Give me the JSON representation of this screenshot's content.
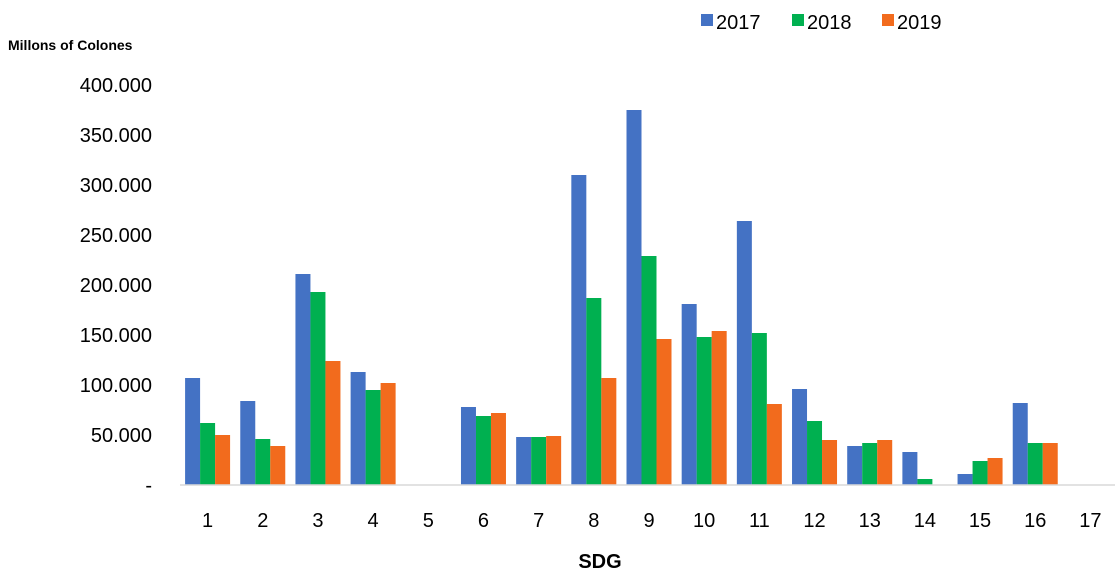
{
  "chart_data": {
    "type": "bar",
    "title": "",
    "xlabel": "SDG",
    "ylabel": "Millons of Colones",
    "categories": [
      "1",
      "2",
      "3",
      "4",
      "5",
      "6",
      "7",
      "8",
      "9",
      "10",
      "11",
      "12",
      "13",
      "14",
      "15",
      "16",
      "17"
    ],
    "series": [
      {
        "name": "2017",
        "color": "#4472C4",
        "values": [
          107000,
          84000,
          211000,
          113000,
          0,
          78000,
          48000,
          310000,
          375000,
          181000,
          264000,
          96000,
          39000,
          33000,
          11000,
          82000,
          0
        ]
      },
      {
        "name": "2018",
        "color": "#00B050",
        "values": [
          62000,
          46000,
          193000,
          95000,
          0,
          69000,
          48000,
          187000,
          229000,
          148000,
          152000,
          64000,
          42000,
          6000,
          24000,
          42000,
          0
        ]
      },
      {
        "name": "2019",
        "color": "#F26B1D",
        "values": [
          50000,
          39000,
          124000,
          102000,
          0,
          72000,
          49000,
          107000,
          146000,
          154000,
          81000,
          45000,
          45000,
          0,
          27000,
          42000,
          0
        ]
      }
    ],
    "ylim": [
      0,
      400000
    ],
    "yticks": [
      0,
      50000,
      100000,
      150000,
      200000,
      250000,
      300000,
      350000,
      400000
    ],
    "ytick_labels": [
      "-",
      "50.000",
      "100.000",
      "150.000",
      "200.000",
      "250.000",
      "300.000",
      "350.000",
      "400.000"
    ],
    "grid": false,
    "legend_position": "top-right"
  }
}
